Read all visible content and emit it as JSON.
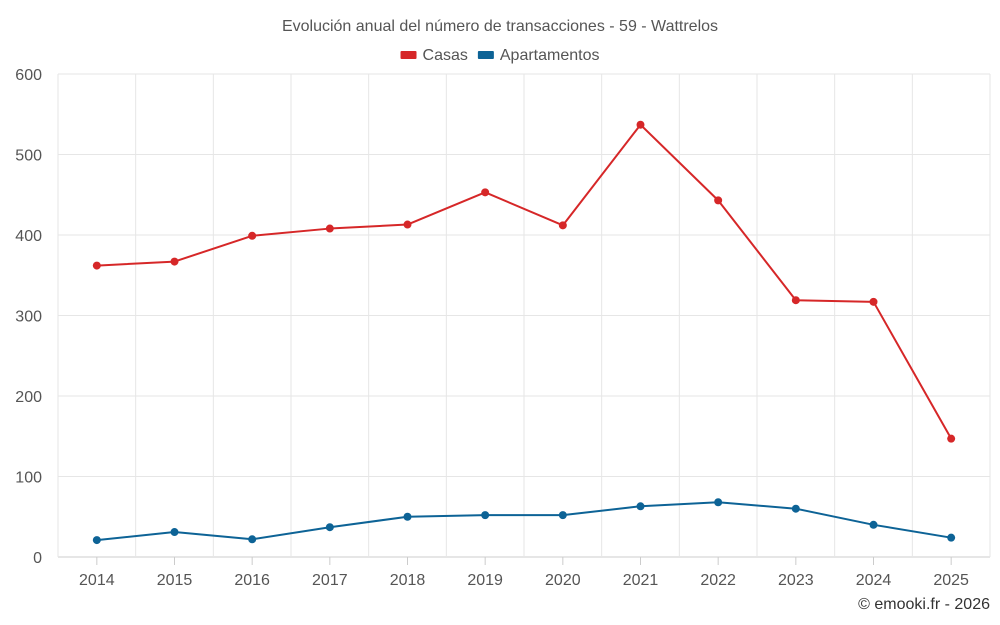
{
  "chart_data": {
    "type": "line",
    "title": "Evolución anual del número de transacciones - 59 - Wattrelos",
    "categories": [
      "2014",
      "2015",
      "2016",
      "2017",
      "2018",
      "2019",
      "2020",
      "2021",
      "2022",
      "2023",
      "2024",
      "2025"
    ],
    "series": [
      {
        "name": "Casas",
        "color": "#d62728",
        "values": [
          362,
          367,
          399,
          408,
          413,
          453,
          412,
          537,
          443,
          319,
          317,
          147
        ]
      },
      {
        "name": "Apartamentos",
        "color": "#0d6396",
        "values": [
          21,
          31,
          22,
          37,
          50,
          52,
          52,
          63,
          68,
          60,
          40,
          24
        ]
      }
    ],
    "ylim": [
      0,
      600
    ],
    "yticks": [
      0,
      100,
      200,
      300,
      400,
      500,
      600
    ],
    "grid": true,
    "legend_position": "top-center",
    "xlabel": "",
    "ylabel": ""
  },
  "credit": "© emooki.fr - 2026"
}
